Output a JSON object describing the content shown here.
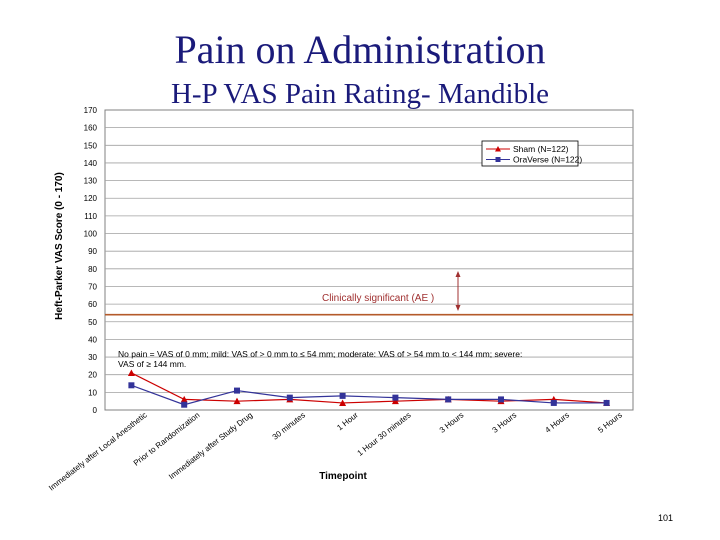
{
  "slide": {
    "title": "Pain on Administration",
    "subtitle": "H-P VAS Pain Rating- Mandible",
    "page_number": "101"
  },
  "chart_data": {
    "type": "line",
    "ylabel": "Heft-Parker VAS Score (0 - 170)",
    "xlabel": "Timepoint",
    "ylim": [
      0,
      170
    ],
    "y_ticks": [
      0,
      10,
      20,
      30,
      40,
      50,
      60,
      70,
      80,
      90,
      100,
      110,
      120,
      130,
      140,
      150,
      160,
      170
    ],
    "grid": true,
    "legend_position": "top-right",
    "categories": [
      "Immediately after Local Anesthetic",
      "Prior to Randomization",
      "Immediately after Study Drug",
      "30 minutes",
      "1 Hour",
      "1 Hour 30 minutes",
      "3 Hours",
      "3 Hours",
      "4 Hours",
      "5 Hours"
    ],
    "series": [
      {
        "name": "Sham (N=122)",
        "color": "#cc0000",
        "marker": "triangle",
        "values": [
          21,
          6,
          5,
          6,
          4,
          5,
          6,
          5,
          6,
          4
        ]
      },
      {
        "name": "OraVerse (N=122)",
        "color": "#333399",
        "marker": "square",
        "values": [
          14,
          3,
          11,
          7,
          8,
          7,
          6,
          6,
          4,
          4
        ]
      }
    ],
    "reference_line": {
      "value": 54,
      "color": "#b45a2a"
    },
    "annotations": {
      "ae_label": "Clinically significant (AE )",
      "note": "No pain = VAS of 0 mm; mild: VAS of > 0 mm to ≤ 54 mm; moderate: VAS of > 54 mm to < 144 mm; severe: VAS of ≥ 144 mm."
    }
  }
}
